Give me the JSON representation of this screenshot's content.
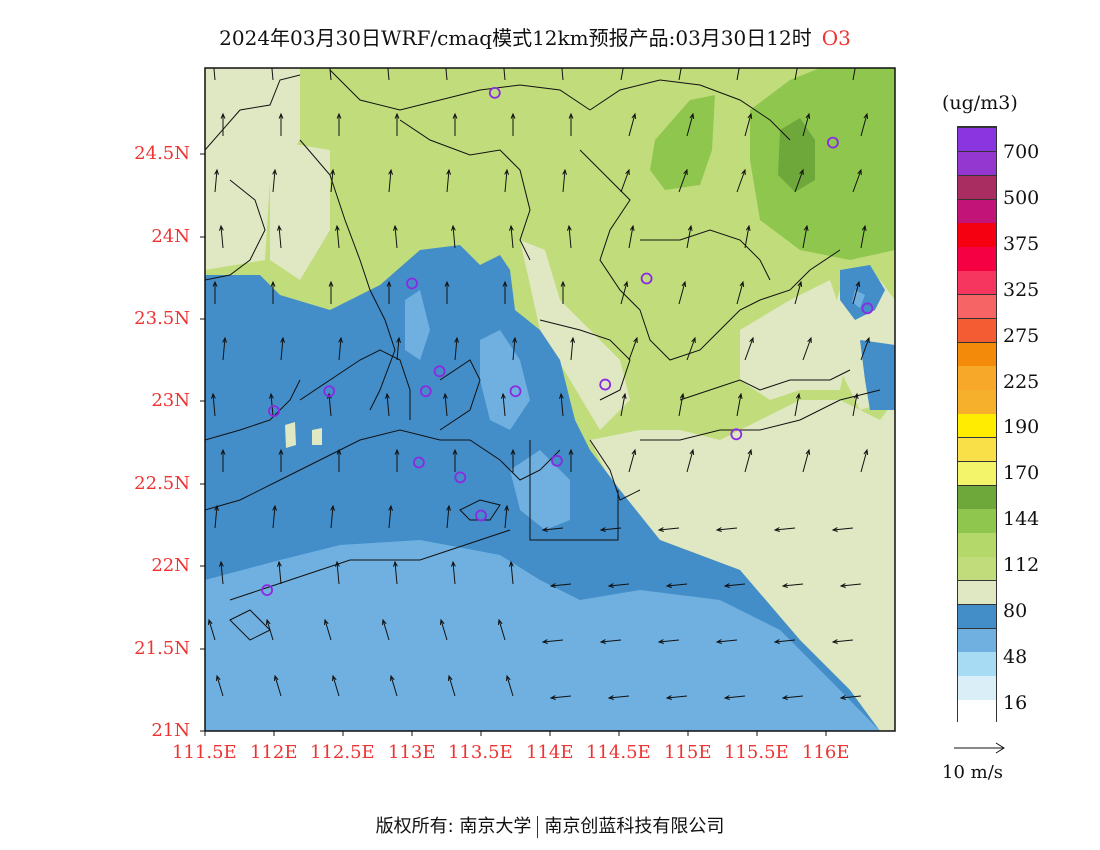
{
  "title": {
    "main": "2024年03月30日WRF/cmaq模式12km预报产品:03月30日12时",
    "species": "O3"
  },
  "axes": {
    "lat_labels": [
      "24.5N",
      "24N",
      "23.5N",
      "23N",
      "22.5N",
      "22N",
      "21.5N",
      "21N"
    ],
    "lat_values": [
      24.5,
      24.0,
      23.5,
      23.0,
      22.5,
      22.0,
      21.5,
      21.0
    ],
    "lon_labels": [
      "111.5E",
      "112E",
      "112.5E",
      "113E",
      "113.5E",
      "114E",
      "114.5E",
      "115E",
      "115.5E",
      "116E"
    ],
    "lon_values": [
      111.5,
      112.0,
      112.5,
      113.0,
      113.5,
      114.0,
      114.5,
      115.0,
      115.5,
      116.0
    ],
    "lat_range": [
      21.0,
      25.0
    ],
    "lon_range": [
      111.5,
      116.5
    ]
  },
  "legend": {
    "unit": "(ug/m3)",
    "labels": [
      "700",
      "500",
      "375",
      "325",
      "275",
      "225",
      "190",
      "170",
      "144",
      "112",
      "80",
      "48",
      "16"
    ],
    "colors": [
      "#ffffff",
      "#daeef8",
      "#a7dbf3",
      "#6fb0e1",
      "#438dc9",
      "#dfe8c3",
      "#c1dc7b",
      "#b4d96a",
      "#8fc74e",
      "#6ea83b",
      "#f4f46b",
      "#f9e048",
      "#ffec00",
      "#f6b02c",
      "#f8a829",
      "#f48a0a",
      "#f45c33",
      "#f66466",
      "#f6365e",
      "#f60044",
      "#f40011",
      "#c21379",
      "#aa2d62",
      "#9437d0",
      "#8a35e0"
    ]
  },
  "wind": {
    "reference_label": "10 m/s"
  },
  "stations": [
    {
      "lon": 113.6,
      "lat": 24.85
    },
    {
      "lon": 116.05,
      "lat": 24.55
    },
    {
      "lon": 113.0,
      "lat": 23.7
    },
    {
      "lon": 114.7,
      "lat": 23.73
    },
    {
      "lon": 116.3,
      "lat": 23.55
    },
    {
      "lon": 112.4,
      "lat": 23.05
    },
    {
      "lon": 112.0,
      "lat": 22.93
    },
    {
      "lon": 113.1,
      "lat": 23.05
    },
    {
      "lon": 113.2,
      "lat": 23.17
    },
    {
      "lon": 113.75,
      "lat": 23.05
    },
    {
      "lon": 114.4,
      "lat": 23.09
    },
    {
      "lon": 115.35,
      "lat": 22.79
    },
    {
      "lon": 113.05,
      "lat": 22.62
    },
    {
      "lon": 113.35,
      "lat": 22.53
    },
    {
      "lon": 114.05,
      "lat": 22.63
    },
    {
      "lon": 113.5,
      "lat": 22.3
    },
    {
      "lon": 111.95,
      "lat": 21.85
    }
  ],
  "credit": {
    "left": "版权所有: 南京大学",
    "right": "南京创蓝科技有限公司"
  }
}
